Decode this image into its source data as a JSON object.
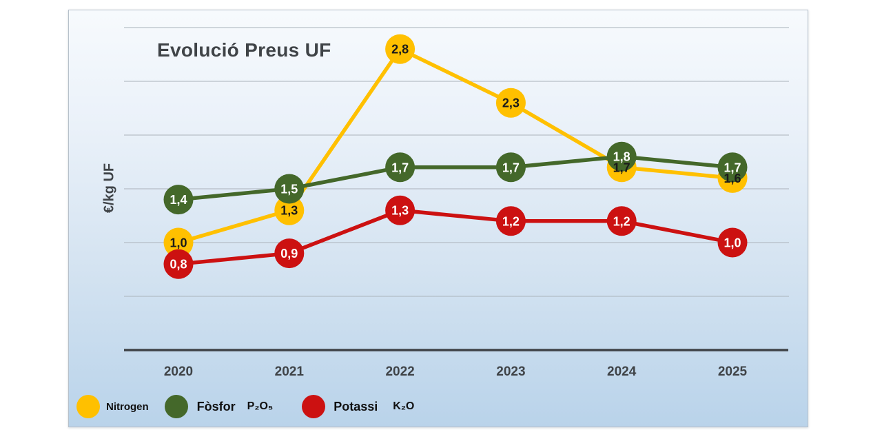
{
  "page": {
    "background": "#ffffff"
  },
  "panel": {
    "background_top": "#f7fafd",
    "background_bottom": "#b9d3ea",
    "border_color": "#b6c0ca"
  },
  "chart_data": {
    "type": "line",
    "title": "Evolució Preus UF",
    "ylabel": "€/kg UF",
    "xlabel": "",
    "categories": [
      "2020",
      "2021",
      "2022",
      "2023",
      "2024",
      "2025"
    ],
    "ylim": [
      0,
      3
    ],
    "gridline_interval": 0.5,
    "grid": true,
    "y_tick_labels_shown": false,
    "legend_position": "bottom",
    "decimal_separator": ",",
    "axis_color": "#3f4347",
    "grid_color": "#aeb6be",
    "text_color": "#3f4347",
    "series": [
      {
        "id": "nitrogen",
        "name": "Nitrogen",
        "formula": "",
        "color": "#FFC000",
        "label_color": "#1a1a1a",
        "values": [
          1.0,
          1.3,
          2.8,
          2.3,
          1.7,
          1.6
        ],
        "labels": [
          "1,0",
          "1,3",
          "2,8",
          "2,3",
          "1,7",
          "1,6"
        ]
      },
      {
        "id": "fosfor",
        "name": "Fòsfor",
        "formula": "P₂O₅",
        "color": "#44682A",
        "label_color": "#ffffff",
        "values": [
          1.4,
          1.5,
          1.7,
          1.7,
          1.8,
          1.7
        ],
        "labels": [
          "1,4",
          "1,5",
          "1,7",
          "1,7",
          "1,8",
          "1,7"
        ]
      },
      {
        "id": "potassi",
        "name": "Potassi",
        "formula": "K₂O",
        "color": "#CC1111",
        "label_color": "#ffffff",
        "values": [
          0.8,
          0.9,
          1.3,
          1.2,
          1.2,
          1.0
        ],
        "labels": [
          "0,8",
          "0,9",
          "1,3",
          "1,2",
          "1,2",
          "1,0"
        ]
      }
    ]
  }
}
